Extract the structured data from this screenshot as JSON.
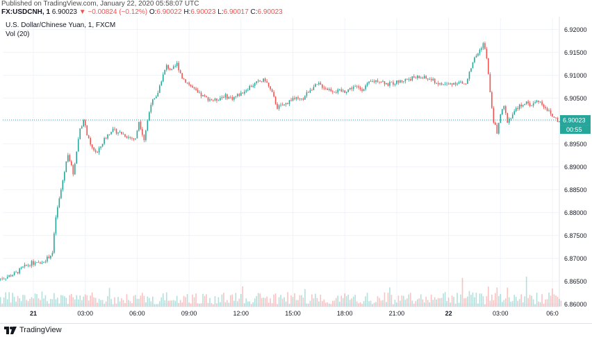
{
  "published_line": "Published on TradingView.com, January 22, 2020 05:58:07 UTC",
  "quote": {
    "symbol": "FX:USDCNH, 1",
    "last": "6.90023",
    "arrow": "▼",
    "change": "−0.00824 (−0.12%)",
    "o_label": "O:",
    "o_value": "6.90022",
    "h_label": "H:",
    "h_value": "6.90023",
    "l_label": "L:",
    "l_value": "6.90017",
    "c_label": "C:",
    "c_value": "6.90023"
  },
  "legend": {
    "title": "U.S. Dollar/Chinese Yuan, 1, FXCM",
    "volume": "Vol (20)"
  },
  "price_tag": {
    "value": "6.90023",
    "countdown": "00:55"
  },
  "footer": {
    "brand": "TradingView"
  },
  "colors": {
    "up": "#26a69a",
    "down": "#ef5350",
    "grid": "#f0f3fa",
    "price_line": "#26a69a"
  },
  "chart_data": {
    "type": "candlestick",
    "title": "U.S. Dollar/Chinese Yuan, 1, FXCM",
    "ylim": [
      6.8595,
      6.9225
    ],
    "y_ticks": [
      "6.92000",
      "6.91500",
      "6.91000",
      "6.90500",
      "6.90000",
      "6.89500",
      "6.89000",
      "6.88500",
      "6.88000",
      "6.87500",
      "6.87000",
      "6.86500",
      "6.86000"
    ],
    "x_ticks": [
      "21",
      "03:00",
      "06:00",
      "09:00",
      "12:00",
      "15:00",
      "18:00",
      "21:00",
      "22",
      "03:00",
      "06:0"
    ],
    "x_hours": [
      0,
      3,
      6,
      9,
      12,
      15,
      18,
      21,
      24,
      27,
      30
    ],
    "last_price": 6.90023,
    "price_path": [
      [
        -2.0,
        6.8655
      ],
      [
        -1.5,
        6.866
      ],
      [
        -1.0,
        6.8668
      ],
      [
        -0.6,
        6.868
      ],
      [
        -0.1,
        6.869
      ],
      [
        0.3,
        6.8688
      ],
      [
        0.8,
        6.87
      ],
      [
        1.1,
        6.8712
      ],
      [
        1.3,
        6.879
      ],
      [
        1.6,
        6.885
      ],
      [
        2.0,
        6.893
      ],
      [
        2.3,
        6.8885
      ],
      [
        2.7,
        6.8985
      ],
      [
        2.9,
        6.9
      ],
      [
        3.3,
        6.8945
      ],
      [
        3.7,
        6.893
      ],
      [
        4.1,
        6.896
      ],
      [
        4.5,
        6.898
      ],
      [
        5.0,
        6.8975
      ],
      [
        5.5,
        6.8965
      ],
      [
        5.9,
        6.896
      ],
      [
        6.1,
        6.9
      ],
      [
        6.4,
        6.896
      ],
      [
        6.8,
        6.904
      ],
      [
        7.1,
        6.905
      ],
      [
        7.4,
        6.909
      ],
      [
        7.7,
        6.912
      ],
      [
        8.0,
        6.911
      ],
      [
        8.3,
        6.9125
      ],
      [
        8.6,
        6.9095
      ],
      [
        9.0,
        6.908
      ],
      [
        9.5,
        6.906
      ],
      [
        10.0,
        6.905
      ],
      [
        10.5,
        6.9045
      ],
      [
        11.0,
        6.9055
      ],
      [
        11.5,
        6.905
      ],
      [
        12.0,
        6.906
      ],
      [
        12.5,
        6.9075
      ],
      [
        13.0,
        6.9085
      ],
      [
        13.4,
        6.909
      ],
      [
        13.8,
        6.906
      ],
      [
        14.1,
        6.903
      ],
      [
        14.5,
        6.9035
      ],
      [
        15.0,
        6.905
      ],
      [
        15.5,
        6.9045
      ],
      [
        16.0,
        6.907
      ],
      [
        16.5,
        6.908
      ],
      [
        17.0,
        6.907
      ],
      [
        17.5,
        6.9065
      ],
      [
        18.0,
        6.9065
      ],
      [
        18.5,
        6.9075
      ],
      [
        19.0,
        6.907
      ],
      [
        19.5,
        6.9085
      ],
      [
        20.0,
        6.909
      ],
      [
        20.5,
        6.908
      ],
      [
        21.0,
        6.9085
      ],
      [
        21.5,
        6.909
      ],
      [
        22.0,
        6.9095
      ],
      [
        22.5,
        6.9095
      ],
      [
        23.0,
        6.909
      ],
      [
        23.5,
        6.908
      ],
      [
        24.0,
        6.908
      ],
      [
        24.5,
        6.9085
      ],
      [
        25.0,
        6.908
      ],
      [
        25.4,
        6.913
      ],
      [
        25.8,
        6.9155
      ],
      [
        26.0,
        6.917
      ],
      [
        26.2,
        6.914
      ],
      [
        26.4,
        6.906
      ],
      [
        26.6,
        6.9
      ],
      [
        26.8,
        6.8975
      ],
      [
        27.0,
        6.9015
      ],
      [
        27.2,
        6.903
      ],
      [
        27.4,
        6.9
      ],
      [
        27.6,
        6.901
      ],
      [
        28.0,
        6.903
      ],
      [
        28.4,
        6.904
      ],
      [
        28.8,
        6.9035
      ],
      [
        29.2,
        6.9045
      ],
      [
        29.6,
        6.903
      ],
      [
        30.0,
        6.901
      ],
      [
        30.4,
        6.9
      ],
      [
        30.6,
        6.90023
      ]
    ]
  }
}
